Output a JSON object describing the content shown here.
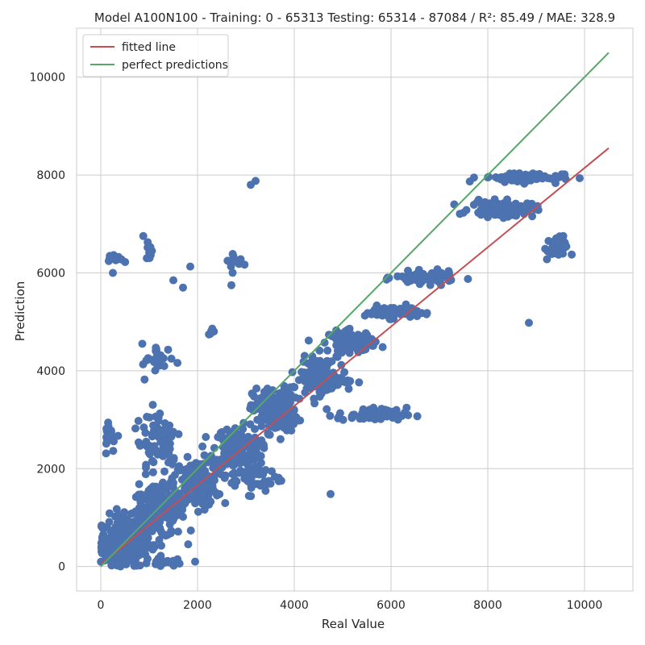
{
  "chart_data": {
    "type": "scatter",
    "title": "Model A100N100 - Training: 0 - 65313 Testing: 65314 - 87084 / R²: 85.49 / MAE: 328.9",
    "xlabel": "Real Value",
    "ylabel": "Prediction",
    "xlim": [
      -500,
      11000
    ],
    "ylim": [
      -500,
      11000
    ],
    "xticks": [
      0,
      2000,
      4000,
      6000,
      8000,
      10000
    ],
    "yticks": [
      0,
      2000,
      4000,
      6000,
      8000,
      10000
    ],
    "grid": true,
    "legend_position": "top-left",
    "colors": {
      "points": "#4c72b0",
      "fitted": "#c44e52",
      "perfect": "#55a868",
      "grid": "#cccccc",
      "axes_bg": "#ffffff"
    },
    "series": [
      {
        "name": "fitted line",
        "kind": "line",
        "x": [
          0,
          10500
        ],
        "y": [
          40,
          8550
        ]
      },
      {
        "name": "perfect predictions",
        "kind": "line",
        "x": [
          0,
          10500
        ],
        "y": [
          0,
          10500
        ]
      }
    ],
    "scatter_clusters": [
      {
        "cx": 500,
        "cy": 500,
        "sx": 450,
        "sy": 450,
        "n": 260
      },
      {
        "cx": 1200,
        "cy": 1100,
        "sx": 450,
        "sy": 420,
        "n": 180
      },
      {
        "cx": 2000,
        "cy": 1700,
        "sx": 400,
        "sy": 400,
        "n": 170
      },
      {
        "cx": 2800,
        "cy": 2400,
        "sx": 400,
        "sy": 380,
        "n": 170
      },
      {
        "cx": 3600,
        "cy": 3200,
        "sx": 380,
        "sy": 380,
        "n": 170
      },
      {
        "cx": 4500,
        "cy": 3900,
        "sx": 300,
        "sy": 300,
        "n": 100
      },
      {
        "cx": 5200,
        "cy": 4600,
        "sx": 400,
        "sy": 180,
        "n": 100
      },
      {
        "cx": 6000,
        "cy": 5200,
        "sx": 450,
        "sy": 100,
        "n": 80
      },
      {
        "cx": 6700,
        "cy": 5900,
        "sx": 500,
        "sy": 100,
        "n": 100
      },
      {
        "cx": 8300,
        "cy": 7300,
        "sx": 550,
        "sy": 130,
        "n": 110
      },
      {
        "cx": 8700,
        "cy": 7950,
        "sx": 700,
        "sy": 90,
        "n": 70
      },
      {
        "cx": 9400,
        "cy": 6500,
        "sx": 200,
        "sy": 200,
        "n": 30
      },
      {
        "cx": 5600,
        "cy": 3100,
        "sx": 600,
        "sy": 120,
        "n": 60
      },
      {
        "cx": 4800,
        "cy": 3800,
        "sx": 400,
        "sy": 150,
        "n": 40
      },
      {
        "cx": 3200,
        "cy": 1800,
        "sx": 450,
        "sy": 250,
        "n": 50
      },
      {
        "cx": 1200,
        "cy": 2600,
        "sx": 400,
        "sy": 700,
        "n": 70
      },
      {
        "cx": 1200,
        "cy": 4200,
        "sx": 300,
        "sy": 300,
        "n": 25
      },
      {
        "cx": 300,
        "cy": 6300,
        "sx": 120,
        "sy": 60,
        "n": 18
      },
      {
        "cx": 1000,
        "cy": 6500,
        "sx": 60,
        "sy": 200,
        "n": 12
      },
      {
        "cx": 2300,
        "cy": 4800,
        "sx": 60,
        "sy": 60,
        "n": 8
      },
      {
        "cx": 2800,
        "cy": 6200,
        "sx": 200,
        "sy": 200,
        "n": 12
      },
      {
        "cx": 200,
        "cy": 2700,
        "sx": 150,
        "sy": 300,
        "n": 15
      },
      {
        "cx": 1300,
        "cy": 100,
        "sx": 200,
        "sy": 80,
        "n": 25
      }
    ],
    "scatter_points": [
      [
        3100,
        7800
      ],
      [
        3200,
        7880
      ],
      [
        8850,
        4980
      ],
      [
        4750,
        1480
      ],
      [
        1950,
        100
      ],
      [
        250,
        6000
      ],
      [
        2700,
        5750
      ],
      [
        1700,
        5700
      ],
      [
        1500,
        5850
      ],
      [
        1850,
        6130
      ]
    ]
  }
}
